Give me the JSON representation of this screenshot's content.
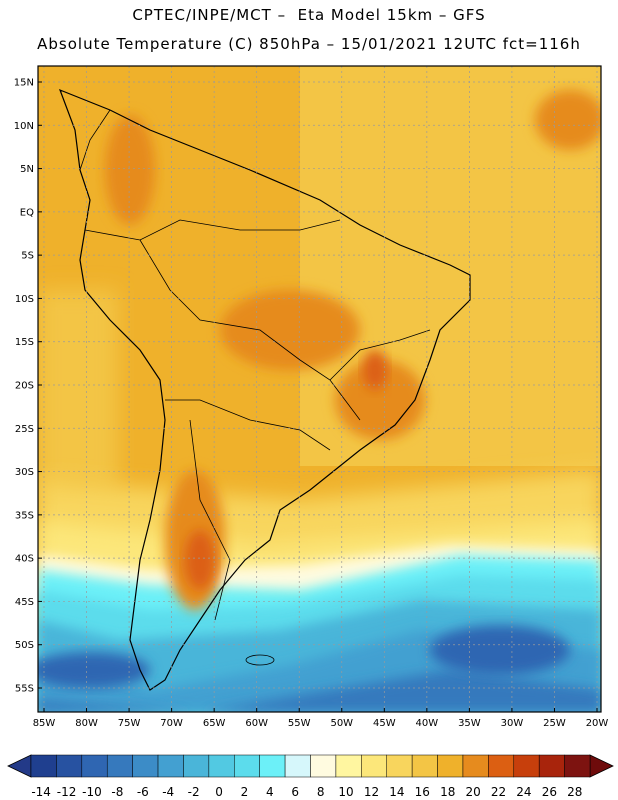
{
  "header": {
    "line1": "CPTEC/INPE/MCT –  Eta Model 15km – GFS",
    "line2": "Absolute Temperature (C) 850hPa – 15/01/2021 12UTC fct=116h"
  },
  "axes": {
    "lat_labels": [
      "15N",
      "10N",
      "5N",
      "EQ",
      "5S",
      "10S",
      "15S",
      "20S",
      "25S",
      "30S",
      "35S",
      "40S",
      "45S",
      "50S",
      "55S"
    ],
    "lon_labels": [
      "85W",
      "80W",
      "75W",
      "70W",
      "65W",
      "60W",
      "55W",
      "50W",
      "45W",
      "40W",
      "35W",
      "30W",
      "25W",
      "20W"
    ]
  },
  "colorbar": {
    "labels": [
      "-14",
      "-12",
      "-10",
      "-8",
      "-6",
      "-4",
      "-2",
      "0",
      "2",
      "4",
      "6",
      "8",
      "10",
      "12",
      "14",
      "16",
      "18",
      "20",
      "22",
      "24",
      "26",
      "28"
    ],
    "colors": [
      "#1f3f8f",
      "#2752a1",
      "#2f66b2",
      "#3679bd",
      "#3c8cc7",
      "#43a0d1",
      "#4ab5d9",
      "#52c9e2",
      "#5cdcec",
      "#6cf0f8",
      "#d6f7fb",
      "#fffbe0",
      "#fff6a0",
      "#fce77a",
      "#f8d55d",
      "#f3c545",
      "#efb12b",
      "#e68b1e",
      "#dc5f12",
      "#c73f0c",
      "#a8240c",
      "#7d1310"
    ],
    "under_color": "#233a88",
    "over_color": "#6e0b0b"
  }
}
